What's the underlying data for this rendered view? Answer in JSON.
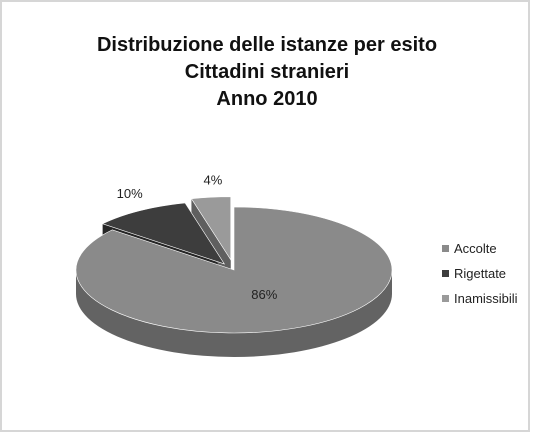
{
  "chart_data": {
    "type": "pie",
    "title": [
      "Distribuzione delle istanze per esito",
      "Cittadini stranieri",
      "Anno 2010"
    ],
    "slices": [
      {
        "label": "Accolte",
        "value": 86,
        "value_label": "86%",
        "color": "#8a8a8a"
      },
      {
        "label": "Rigettate",
        "value": 10,
        "value_label": "10%",
        "color": "#3d3d3d"
      },
      {
        "label": "Inamissibili",
        "value": 4,
        "value_label": "4%",
        "color": "#9a9a9a"
      }
    ],
    "style": "3d-exploded",
    "legend_position": "right"
  }
}
